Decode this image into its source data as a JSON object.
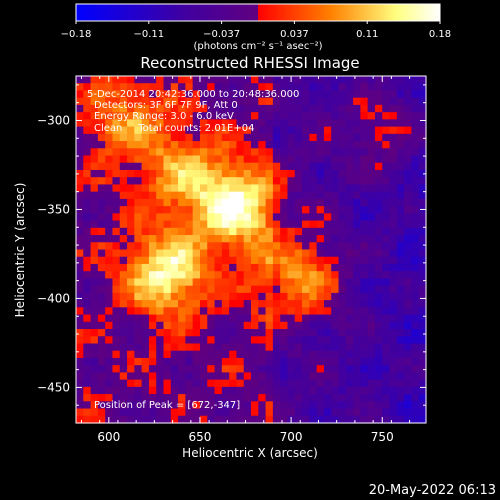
{
  "chart_data": {
    "type": "heatmap",
    "title": "Reconstructed RHESSI Image",
    "xlabel": "Heliocentric X (arcsec)",
    "ylabel": "Heliocentric Y (arcsec)",
    "xlim": [
      582,
      774
    ],
    "ylim": [
      -470,
      -275
    ],
    "x_ticks": [
      600,
      650,
      700,
      750
    ],
    "y_ticks": [
      -300,
      -350,
      -400,
      -450
    ],
    "colorbar": {
      "min": -0.18,
      "max": 0.18,
      "ticks": [
        "−0.18",
        "−0.11",
        "−0.037",
        "0.037",
        "0.11",
        "0.18"
      ],
      "unit_label": "(photons cm⁻² s⁻¹ asec⁻²)",
      "colors": [
        "#0000ff",
        "#4000a0",
        "#600080",
        "#ff0000",
        "#ff8000",
        "#ffff80",
        "#ffffff"
      ]
    },
    "annotations": [
      "5-Dec-2014 20:42:36.000 to 20:48:36.000",
      "Detectors: 3F 6F 7F 9F, Att 0",
      "Energy Range: 3.0 - 6.0 keV",
      "Clean     Total counts: 2.01E+04",
      "Position of Peak = [672,-347]"
    ],
    "peak": {
      "x": 672,
      "y": -347
    },
    "sources": [
      {
        "x": 670,
        "y": -348,
        "peak": 0.18
      },
      {
        "x": 632,
        "y": -386,
        "peak": 0.17
      },
      {
        "x": 705,
        "y": -388,
        "peak": 0.13
      },
      {
        "x": 610,
        "y": -300,
        "peak": 0.09
      },
      {
        "x": 640,
        "y": -330,
        "peak": 0.1
      },
      {
        "x": 750,
        "y": -305,
        "peak": 0.07
      }
    ]
  },
  "footer": {
    "date": "20-May-2022 06:13"
  }
}
